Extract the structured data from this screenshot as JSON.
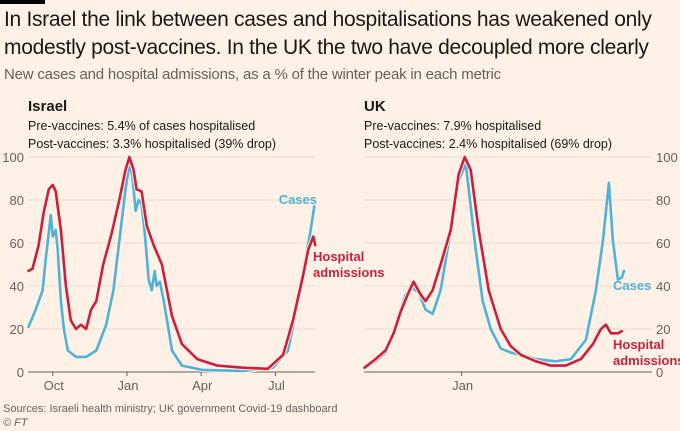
{
  "header": {
    "title": "In Israel the link between cases and hospitalisations has weakened only modestly post-vaccines. In the UK the two have decoupled more clearly",
    "subtitle": "New cases and hospital admissions, as a % of the winter peak in each metric"
  },
  "footer": {
    "source": "Sources: Israeli health ministry; UK government Covid-19 dashboard",
    "credit": "© FT"
  },
  "colors": {
    "background": "#fff1e5",
    "cases": "#4fb3d9",
    "hospital": "#cc1f3b",
    "grid": "#e8dbcf",
    "axis": "#66605c"
  },
  "chart_data": [
    {
      "type": "line",
      "panel": "israel",
      "title": "Israel",
      "notes": [
        "Pre-vaccines: 5.4% of cases hospitalised",
        "Post-vaccines: 3.3% hospitalised (39% drop)"
      ],
      "xlabel": "",
      "ylabel": "",
      "x_unit": "months since 1 Oct 2020",
      "x_ticks": [
        {
          "value": 0,
          "label": "Oct"
        },
        {
          "value": 3,
          "label": "Jan"
        },
        {
          "value": 6,
          "label": "Apr"
        },
        {
          "value": 9,
          "label": "Jul"
        }
      ],
      "xlim": [
        -1,
        10.6
      ],
      "y_ticks": [
        0,
        20,
        40,
        60,
        80,
        100
      ],
      "ylim": [
        0,
        100
      ],
      "y_axis_side": "left",
      "grid": true,
      "series": [
        {
          "name": "Cases",
          "color_key": "cases",
          "points": [
            [
              -0.98,
              21
            ],
            [
              -0.69,
              29
            ],
            [
              -0.41,
              38
            ],
            [
              -0.29,
              52
            ],
            [
              -0.16,
              65
            ],
            [
              -0.08,
              73
            ],
            [
              0.0,
              63
            ],
            [
              0.12,
              66
            ],
            [
              0.2,
              57
            ],
            [
              0.33,
              33
            ],
            [
              0.45,
              20
            ],
            [
              0.61,
              10
            ],
            [
              0.94,
              7
            ],
            [
              1.35,
              7
            ],
            [
              1.76,
              10
            ],
            [
              2.16,
              22
            ],
            [
              2.45,
              38
            ],
            [
              2.69,
              61
            ],
            [
              2.94,
              85
            ],
            [
              3.1,
              97
            ],
            [
              3.22,
              91
            ],
            [
              3.35,
              75
            ],
            [
              3.47,
              80
            ],
            [
              3.59,
              78
            ],
            [
              3.71,
              66
            ],
            [
              3.88,
              43
            ],
            [
              4.0,
              38
            ],
            [
              4.12,
              47
            ],
            [
              4.2,
              40
            ],
            [
              4.33,
              42
            ],
            [
              4.49,
              33
            ],
            [
              4.82,
              10
            ],
            [
              5.22,
              3
            ],
            [
              6.04,
              1
            ],
            [
              7.67,
              0.5
            ],
            [
              8.9,
              2
            ],
            [
              9.51,
              10
            ],
            [
              9.92,
              33
            ],
            [
              10.2,
              52
            ],
            [
              10.41,
              65
            ],
            [
              10.57,
              77
            ]
          ]
        },
        {
          "name": "Hospital admissions",
          "color_key": "hospital",
          "points": [
            [
              -0.98,
              47
            ],
            [
              -0.82,
              48
            ],
            [
              -0.57,
              59
            ],
            [
              -0.37,
              74
            ],
            [
              -0.16,
              85
            ],
            [
              0.0,
              87
            ],
            [
              0.12,
              84
            ],
            [
              0.33,
              66
            ],
            [
              0.53,
              40
            ],
            [
              0.73,
              24
            ],
            [
              0.94,
              20
            ],
            [
              1.14,
              22
            ],
            [
              1.35,
              20
            ],
            [
              1.55,
              29
            ],
            [
              1.76,
              33
            ],
            [
              2.04,
              50
            ],
            [
              2.37,
              64
            ],
            [
              2.69,
              80
            ],
            [
              2.94,
              94
            ],
            [
              3.1,
              100
            ],
            [
              3.27,
              94
            ],
            [
              3.39,
              85
            ],
            [
              3.59,
              84
            ],
            [
              3.8,
              68
            ],
            [
              4.08,
              59
            ],
            [
              4.41,
              50
            ],
            [
              4.82,
              26
            ],
            [
              5.22,
              13
            ],
            [
              5.84,
              6
            ],
            [
              6.65,
              3
            ],
            [
              7.67,
              2
            ],
            [
              8.69,
              1.5
            ],
            [
              9.31,
              8
            ],
            [
              9.71,
              24
            ],
            [
              10.12,
              45
            ],
            [
              10.33,
              57
            ],
            [
              10.53,
              63
            ],
            [
              10.61,
              59
            ]
          ],
          "label": [
            "Hospital",
            "admissions"
          ]
        }
      ]
    },
    {
      "type": "line",
      "panel": "uk",
      "title": "UK",
      "notes": [
        "Pre-vaccines: 7.9% hospitalised",
        "Post-vaccines: 2.4% hospitalised (69% drop)"
      ],
      "xlabel": "",
      "ylabel": "",
      "x_unit": "months since 1 Oct 2020",
      "x_ticks": [
        {
          "value": 3,
          "label": "Jan"
        }
      ],
      "xlim": [
        -0.9,
        10.6
      ],
      "y_ticks": [
        0,
        20,
        40,
        60,
        80,
        100
      ],
      "ylim": [
        0,
        100
      ],
      "y_axis_side": "right",
      "grid": true,
      "series": [
        {
          "name": "Cases",
          "color_key": "cases",
          "points": [
            [
              -0.88,
              2
            ],
            [
              -0.44,
              5
            ],
            [
              -0.04,
              9
            ],
            [
              0.36,
              22
            ],
            [
              0.76,
              36
            ],
            [
              1.04,
              39
            ],
            [
              1.28,
              37
            ],
            [
              1.56,
              29
            ],
            [
              1.84,
              27
            ],
            [
              2.16,
              38
            ],
            [
              2.56,
              66
            ],
            [
              2.88,
              89
            ],
            [
              3.16,
              97
            ],
            [
              3.28,
              85
            ],
            [
              3.56,
              57
            ],
            [
              3.84,
              33
            ],
            [
              4.16,
              20
            ],
            [
              4.56,
              11
            ],
            [
              4.96,
              9
            ],
            [
              5.36,
              8
            ],
            [
              5.96,
              6
            ],
            [
              6.76,
              5
            ],
            [
              7.36,
              6
            ],
            [
              7.96,
              15
            ],
            [
              8.36,
              38
            ],
            [
              8.64,
              61
            ],
            [
              8.88,
              88
            ],
            [
              9.04,
              61
            ],
            [
              9.24,
              43
            ],
            [
              9.4,
              44
            ],
            [
              9.48,
              47
            ]
          ]
        },
        {
          "name": "Hospital admissions",
          "color_key": "hospital",
          "points": [
            [
              -0.88,
              2
            ],
            [
              -0.44,
              6
            ],
            [
              -0.04,
              10
            ],
            [
              0.28,
              18
            ],
            [
              0.56,
              28
            ],
            [
              0.84,
              36
            ],
            [
              1.08,
              42
            ],
            [
              1.36,
              36
            ],
            [
              1.56,
              33
            ],
            [
              1.84,
              38
            ],
            [
              2.16,
              50
            ],
            [
              2.56,
              66
            ],
            [
              2.88,
              92
            ],
            [
              3.12,
              100
            ],
            [
              3.36,
              94
            ],
            [
              3.68,
              66
            ],
            [
              4.08,
              38
            ],
            [
              4.56,
              20
            ],
            [
              4.96,
              12
            ],
            [
              5.36,
              8
            ],
            [
              5.96,
              5
            ],
            [
              6.56,
              3
            ],
            [
              7.16,
              3
            ],
            [
              7.76,
              6
            ],
            [
              8.24,
              13
            ],
            [
              8.56,
              20
            ],
            [
              8.76,
              22
            ],
            [
              8.96,
              18
            ],
            [
              9.24,
              18
            ],
            [
              9.4,
              19
            ]
          ],
          "label": [
            "Hospital",
            "admissions"
          ]
        }
      ]
    }
  ]
}
